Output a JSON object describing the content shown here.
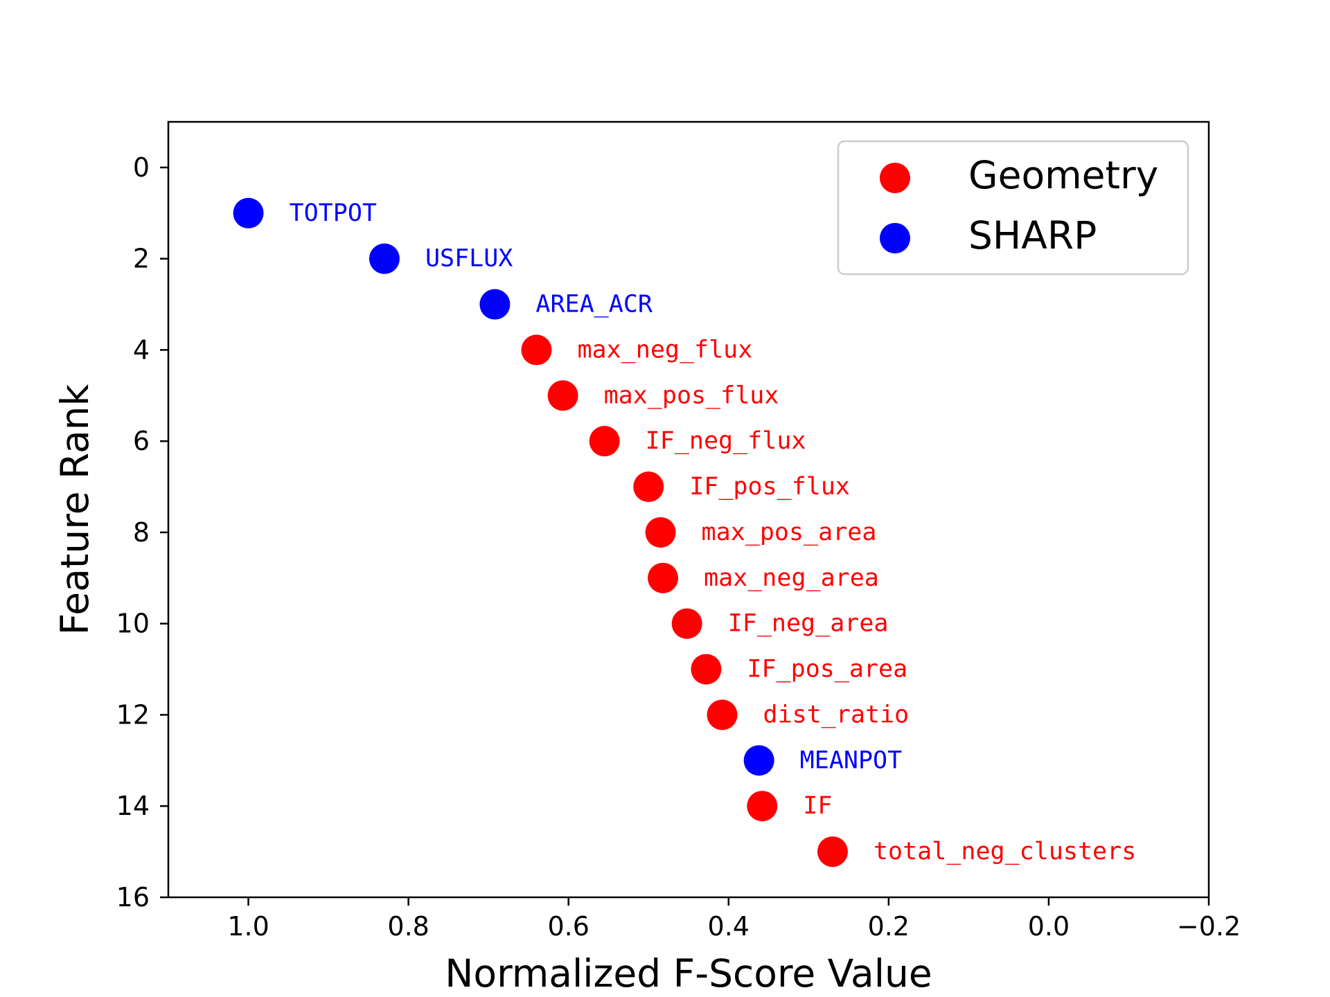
{
  "chart_data": {
    "type": "scatter",
    "xlabel": "Normalized F-Score Value",
    "ylabel": "Feature Rank",
    "xlim": [
      1.1,
      -0.2
    ],
    "ylim": [
      16,
      -1
    ],
    "x_ticks": [
      1.0,
      0.8,
      0.6,
      0.4,
      0.2,
      0.0,
      -0.2
    ],
    "x_tick_labels": [
      "1.0",
      "0.8",
      "0.6",
      "0.4",
      "0.2",
      "0.0",
      "−0.2"
    ],
    "y_ticks": [
      0,
      2,
      4,
      6,
      8,
      10,
      12,
      14,
      16
    ],
    "y_tick_labels": [
      "0",
      "2",
      "4",
      "6",
      "8",
      "10",
      "12",
      "14",
      "16"
    ],
    "grid": false,
    "legend": {
      "placement": "top-right",
      "entries": [
        {
          "name": "Geometry",
          "color": "#ff0000"
        },
        {
          "name": "SHARP",
          "color": "#0000ff"
        }
      ]
    },
    "series": [
      {
        "name": "Geometry",
        "color": "#ff0000",
        "points": [
          {
            "label": "max_neg_flux",
            "x": 0.64,
            "y": 4
          },
          {
            "label": "max_pos_flux",
            "x": 0.607,
            "y": 5
          },
          {
            "label": "IF_neg_flux",
            "x": 0.555,
            "y": 6
          },
          {
            "label": "IF_pos_flux",
            "x": 0.5,
            "y": 7
          },
          {
            "label": "max_pos_area",
            "x": 0.485,
            "y": 8
          },
          {
            "label": "max_neg_area",
            "x": 0.482,
            "y": 9
          },
          {
            "label": "IF_neg_area",
            "x": 0.452,
            "y": 10
          },
          {
            "label": "IF_pos_area",
            "x": 0.428,
            "y": 11
          },
          {
            "label": "dist_ratio",
            "x": 0.408,
            "y": 12
          },
          {
            "label": "IF",
            "x": 0.358,
            "y": 14
          },
          {
            "label": "total_neg_clusters",
            "x": 0.27,
            "y": 15
          }
        ]
      },
      {
        "name": "SHARP",
        "color": "#0000ff",
        "points": [
          {
            "label": "TOTPOT",
            "x": 1.0,
            "y": 1
          },
          {
            "label": "USFLUX",
            "x": 0.83,
            "y": 2
          },
          {
            "label": "AREA_ACR",
            "x": 0.692,
            "y": 3
          },
          {
            "label": "MEANPOT",
            "x": 0.362,
            "y": 13
          }
        ]
      }
    ]
  }
}
